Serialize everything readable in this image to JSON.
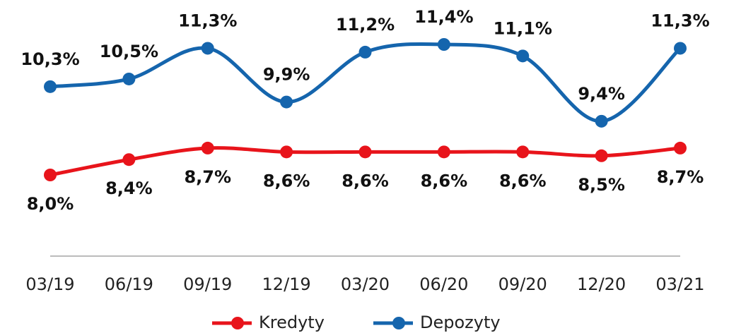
{
  "chart_data": {
    "type": "line",
    "categories": [
      "03/19",
      "06/19",
      "09/19",
      "12/19",
      "03/20",
      "06/20",
      "09/20",
      "12/20",
      "03/21"
    ],
    "series": [
      {
        "name": "Kredyty",
        "color": "#e8141b",
        "values": [
          8.0,
          8.4,
          8.7,
          8.6,
          8.6,
          8.6,
          8.6,
          8.5,
          8.7
        ],
        "value_labels": [
          "8,0%",
          "8,4%",
          "8,7%",
          "8,6%",
          "8,6%",
          "8,6%",
          "8,6%",
          "8,5%",
          "8,7%"
        ]
      },
      {
        "name": "Depozyty",
        "color": "#1565ad",
        "values": [
          10.3,
          10.5,
          11.3,
          9.9,
          11.2,
          11.4,
          11.1,
          9.4,
          11.3
        ],
        "value_labels": [
          "10,3%",
          "10,5%",
          "11,3%",
          "9,9%",
          "11,2%",
          "11,4%",
          "11,1%",
          "9,4%",
          "11,3%"
        ]
      }
    ],
    "legend": "bottom"
  }
}
